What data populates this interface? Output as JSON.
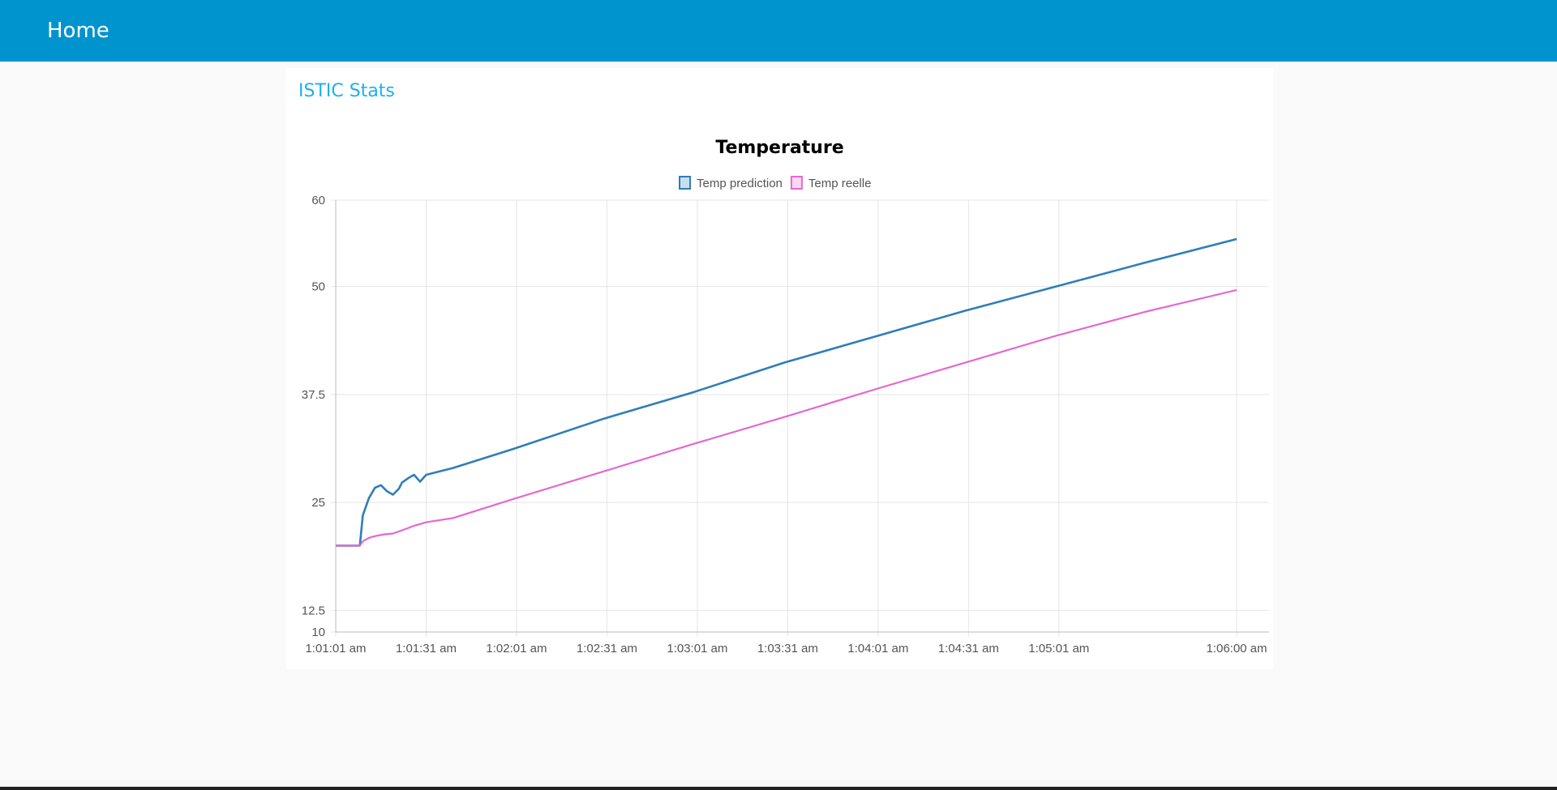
{
  "header": {
    "title": "Home"
  },
  "card": {
    "title": "ISTIC Stats"
  },
  "colors": {
    "header_bg": "#0094ce",
    "card_title": "#1bb0ee",
    "prediction": "#2d7fb8",
    "reelle": "#e667cf",
    "grid": "#e5e5e5"
  },
  "chart_data": {
    "type": "line",
    "title": "Temperature",
    "legend_position": "top",
    "grid": true,
    "xlabel": "",
    "ylabel": "",
    "x_ticks": [
      "1:01:01 am",
      "1:01:31 am",
      "1:02:01 am",
      "1:02:31 am",
      "1:03:01 am",
      "1:03:31 am",
      "1:04:01 am",
      "1:04:31 am",
      "1:05:01 am",
      "1:06:00 am"
    ],
    "x_tick_seconds": [
      61,
      91,
      121,
      151,
      181,
      211,
      241,
      271,
      301,
      360
    ],
    "xlim_seconds": [
      61,
      360
    ],
    "y_ticks": [
      10,
      12.5,
      25,
      37.5,
      50,
      60
    ],
    "ylim": [
      10,
      60
    ],
    "series": [
      {
        "name": "Temp prediction",
        "color": "#2d7fb8",
        "x_seconds": [
          61,
          67,
          69,
          70,
          72,
          74,
          76,
          78,
          80,
          82,
          83,
          85,
          87,
          89,
          91,
          100,
          120,
          150,
          180,
          210,
          240,
          270,
          300,
          330,
          360
        ],
        "values": [
          20,
          20,
          20,
          23.5,
          25.5,
          26.7,
          27,
          26.3,
          25.9,
          26.6,
          27.3,
          27.8,
          28.2,
          27.4,
          28.2,
          29,
          31.2,
          34.7,
          37.8,
          41.2,
          44.2,
          47.2,
          50,
          52.8,
          55.5
        ]
      },
      {
        "name": "Temp reelle",
        "color": "#e667cf",
        "x_seconds": [
          61,
          69,
          70,
          72,
          74,
          77,
          80,
          84,
          87,
          91,
          100,
          120,
          150,
          180,
          210,
          240,
          270,
          300,
          330,
          360
        ],
        "values": [
          20,
          20,
          20.5,
          20.9,
          21.1,
          21.3,
          21.4,
          21.9,
          22.3,
          22.7,
          23.2,
          25.4,
          28.6,
          31.8,
          34.9,
          38.1,
          41.2,
          44.3,
          47.1,
          49.6
        ]
      }
    ]
  }
}
